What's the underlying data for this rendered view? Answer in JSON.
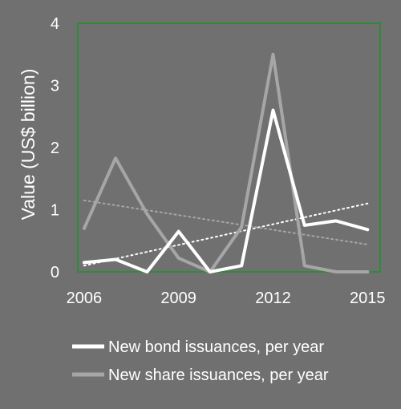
{
  "chart_data": {
    "type": "line",
    "ylabel": "Value (US$ billion)",
    "xlabel": "",
    "x": [
      2006,
      2007,
      2008,
      2009,
      2010,
      2011,
      2012,
      2013,
      2014,
      2015
    ],
    "x_ticks": [
      "2006",
      "2009",
      "2012",
      "2015"
    ],
    "y_ticks": [
      "0",
      "1",
      "2",
      "3",
      "4"
    ],
    "xlim": [
      2005.8,
      2015.4
    ],
    "ylim": [
      0,
      4
    ],
    "grid": false,
    "legend_position": "bottom",
    "series": [
      {
        "name": "New bond issuances, per year",
        "color": "#ffffff",
        "values": [
          0.15,
          0.2,
          0.0,
          0.65,
          0.0,
          0.1,
          2.6,
          0.75,
          0.82,
          0.68
        ]
      },
      {
        "name": "New share issuances, per year",
        "color": "#a6a6a6",
        "values": [
          0.7,
          1.83,
          0.93,
          0.22,
          0.0,
          0.72,
          3.5,
          0.1,
          0.0,
          0.0
        ]
      }
    ],
    "trendlines": [
      {
        "series": "New bond issuances, per year",
        "color": "#ffffff",
        "style": "dotted",
        "start": 0.1,
        "end": 1.1
      },
      {
        "series": "New share issuances, per year",
        "color": "#a6a6a6",
        "style": "dotted",
        "start": 1.15,
        "end": 0.44
      }
    ],
    "plot_border_color": "#2e8b3a"
  }
}
